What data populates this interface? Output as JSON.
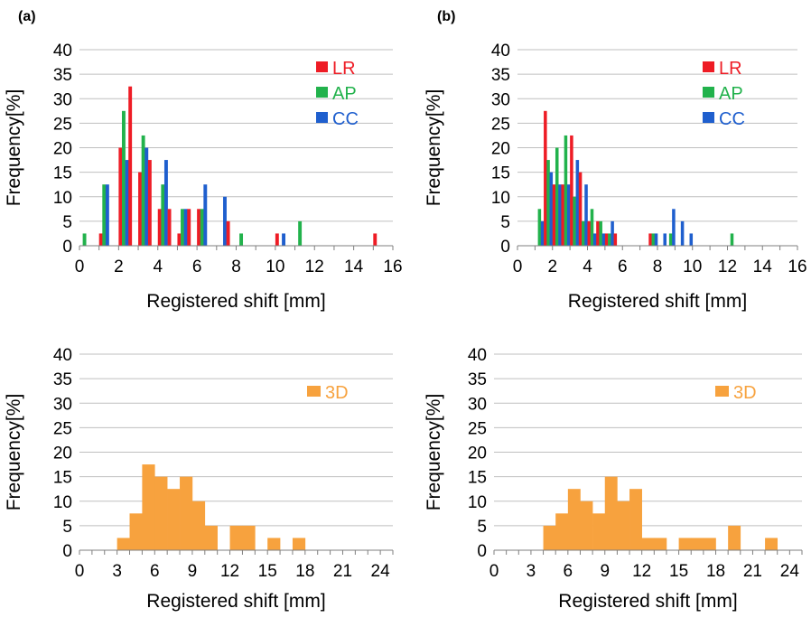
{
  "panel_labels": [
    "(a)",
    "(b)"
  ],
  "colors": {
    "LR": "#ee1c25",
    "AP": "#22b24c",
    "CC": "#1f5fce",
    "3D": "#f7a23e",
    "grid": "#bfbfbf",
    "axis": "#7f7f7f"
  },
  "chart_data": [
    {
      "type": "bar",
      "panel": "(a)",
      "xlabel": "Registered shift [mm]",
      "ylabel": "Frequency[%]",
      "xlim": [
        0,
        16
      ],
      "ylim": [
        0,
        40
      ],
      "xticks": [
        "0",
        "2",
        "4",
        "6",
        "8",
        "10",
        "12",
        "14",
        "16"
      ],
      "yticks": [
        "0",
        "5",
        "10",
        "15",
        "20",
        "25",
        "30",
        "35",
        "40"
      ],
      "grid": true,
      "legend_position": "top-right",
      "bin_width": 0.5,
      "categories": [
        0,
        0.5,
        1,
        1.5,
        2,
        2.5,
        3,
        3.5,
        4,
        4.5,
        5,
        5.5,
        6,
        6.5,
        7,
        7.5,
        8,
        8.5,
        9,
        9.5,
        10,
        10.5,
        11,
        11.5,
        12,
        12.5,
        13,
        13.5,
        14,
        14.5,
        15,
        15.5
      ],
      "series": [
        {
          "name": "LR",
          "values": [
            0,
            0,
            2.5,
            0,
            20,
            32.5,
            15,
            17.5,
            7.5,
            7.5,
            2.5,
            7.5,
            7.5,
            0,
            0,
            5,
            0,
            0,
            0,
            0,
            2.5,
            0,
            0,
            0,
            0,
            0,
            0,
            0,
            0,
            0,
            2.5,
            0
          ]
        },
        {
          "name": "AP",
          "values": [
            2.5,
            0,
            12.5,
            0,
            27.5,
            0,
            22.5,
            0,
            12.5,
            0,
            7.5,
            0,
            7.5,
            0,
            0,
            0,
            2.5,
            0,
            0,
            0,
            0,
            0,
            5,
            0,
            0,
            0,
            0,
            0,
            0,
            0,
            0,
            0
          ]
        },
        {
          "name": "CC",
          "values": [
            0,
            0,
            12.5,
            0,
            17.5,
            0,
            20,
            0,
            17.5,
            0,
            7.5,
            0,
            12.5,
            0,
            10,
            0,
            0,
            0,
            0,
            0,
            2.5,
            0,
            0,
            0,
            0,
            0,
            0,
            0,
            0,
            0,
            0,
            0
          ]
        }
      ]
    },
    {
      "type": "bar",
      "panel": "(b)",
      "xlabel": "Registered shift [mm]",
      "ylabel": "Frequency[%]",
      "xlim": [
        0,
        16
      ],
      "ylim": [
        0,
        40
      ],
      "xticks": [
        "0",
        "2",
        "4",
        "6",
        "8",
        "10",
        "12",
        "14",
        "16"
      ],
      "yticks": [
        "0",
        "5",
        "10",
        "15",
        "20",
        "25",
        "30",
        "35",
        "40"
      ],
      "grid": true,
      "legend_position": "top-right",
      "bin_width": 0.5,
      "categories": [
        0,
        0.5,
        1,
        1.5,
        2,
        2.5,
        3,
        3.5,
        4,
        4.5,
        5,
        5.5,
        6,
        6.5,
        7,
        7.5,
        8,
        8.5,
        9,
        9.5,
        10,
        10.5,
        11,
        11.5,
        12,
        12.5,
        13,
        13.5,
        14,
        14.5,
        15,
        15.5
      ],
      "series": [
        {
          "name": "LR",
          "values": [
            0,
            0,
            0,
            27.5,
            12.5,
            12.5,
            22.5,
            15,
            5,
            5,
            2.5,
            2.5,
            0,
            0,
            0,
            2.5,
            0,
            0,
            0,
            0,
            0,
            0,
            0,
            0,
            0,
            0,
            0,
            0,
            0,
            0,
            0,
            0
          ]
        },
        {
          "name": "AP",
          "values": [
            0,
            0,
            7.5,
            17.5,
            20,
            22.5,
            10,
            5,
            7.5,
            5,
            2.5,
            0,
            0,
            0,
            0,
            2.5,
            0,
            2.5,
            0,
            0,
            0,
            0,
            0,
            0,
            2.5,
            0,
            0,
            0,
            0,
            0,
            0,
            0
          ]
        },
        {
          "name": "CC",
          "values": [
            0,
            0,
            5,
            15,
            12.5,
            12.5,
            17.5,
            12.5,
            2.5,
            2.5,
            5,
            0,
            0,
            0,
            0,
            2.5,
            2.5,
            7.5,
            5,
            2.5,
            0,
            0,
            0,
            0,
            0,
            0,
            0,
            0,
            0,
            0,
            0,
            0
          ]
        }
      ]
    },
    {
      "type": "bar",
      "panel": "(a)",
      "xlabel": "Registered shift [mm]",
      "ylabel": "Frequency[%]",
      "xlim": [
        0,
        25
      ],
      "ylim": [
        0,
        40
      ],
      "xticks": [
        "0",
        "3",
        "6",
        "9",
        "12",
        "15",
        "18",
        "21",
        "24"
      ],
      "xtick_values": [
        0,
        3,
        6,
        9,
        12,
        15,
        18,
        21,
        24
      ],
      "yticks": [
        "0",
        "5",
        "10",
        "15",
        "20",
        "25",
        "30",
        "35",
        "40"
      ],
      "grid": true,
      "legend_position": "top-right",
      "bin_width": 1,
      "categories": [
        0,
        1,
        2,
        3,
        4,
        5,
        6,
        7,
        8,
        9,
        10,
        11,
        12,
        13,
        14,
        15,
        16,
        17,
        18,
        19,
        20,
        21,
        22,
        23,
        24
      ],
      "series": [
        {
          "name": "3D",
          "values": [
            0,
            0,
            0,
            2.5,
            7.5,
            17.5,
            15,
            12.5,
            15,
            10,
            5,
            0,
            5,
            5,
            0,
            2.5,
            0,
            2.5,
            0,
            0,
            0,
            0,
            0,
            0,
            0
          ]
        }
      ]
    },
    {
      "type": "bar",
      "panel": "(b)",
      "xlabel": "Registered shift [mm]",
      "ylabel": "Frequency[%]",
      "xlim": [
        0,
        25
      ],
      "ylim": [
        0,
        40
      ],
      "xticks": [
        "0",
        "3",
        "6",
        "9",
        "12",
        "15",
        "18",
        "21",
        "24"
      ],
      "xtick_values": [
        0,
        3,
        6,
        9,
        12,
        15,
        18,
        21,
        24
      ],
      "yticks": [
        "0",
        "5",
        "10",
        "15",
        "20",
        "25",
        "30",
        "35",
        "40"
      ],
      "grid": true,
      "legend_position": "top-right",
      "bin_width": 1,
      "categories": [
        0,
        1,
        2,
        3,
        4,
        5,
        6,
        7,
        8,
        9,
        10,
        11,
        12,
        13,
        14,
        15,
        16,
        17,
        18,
        19,
        20,
        21,
        22,
        23,
        24
      ],
      "series": [
        {
          "name": "3D",
          "values": [
            0,
            0,
            0,
            0,
            5,
            7.5,
            12.5,
            10,
            7.5,
            15,
            10,
            12.5,
            2.5,
            2.5,
            0,
            2.5,
            2.5,
            2.5,
            0,
            5,
            0,
            0,
            2.5,
            0,
            0
          ]
        }
      ]
    }
  ]
}
